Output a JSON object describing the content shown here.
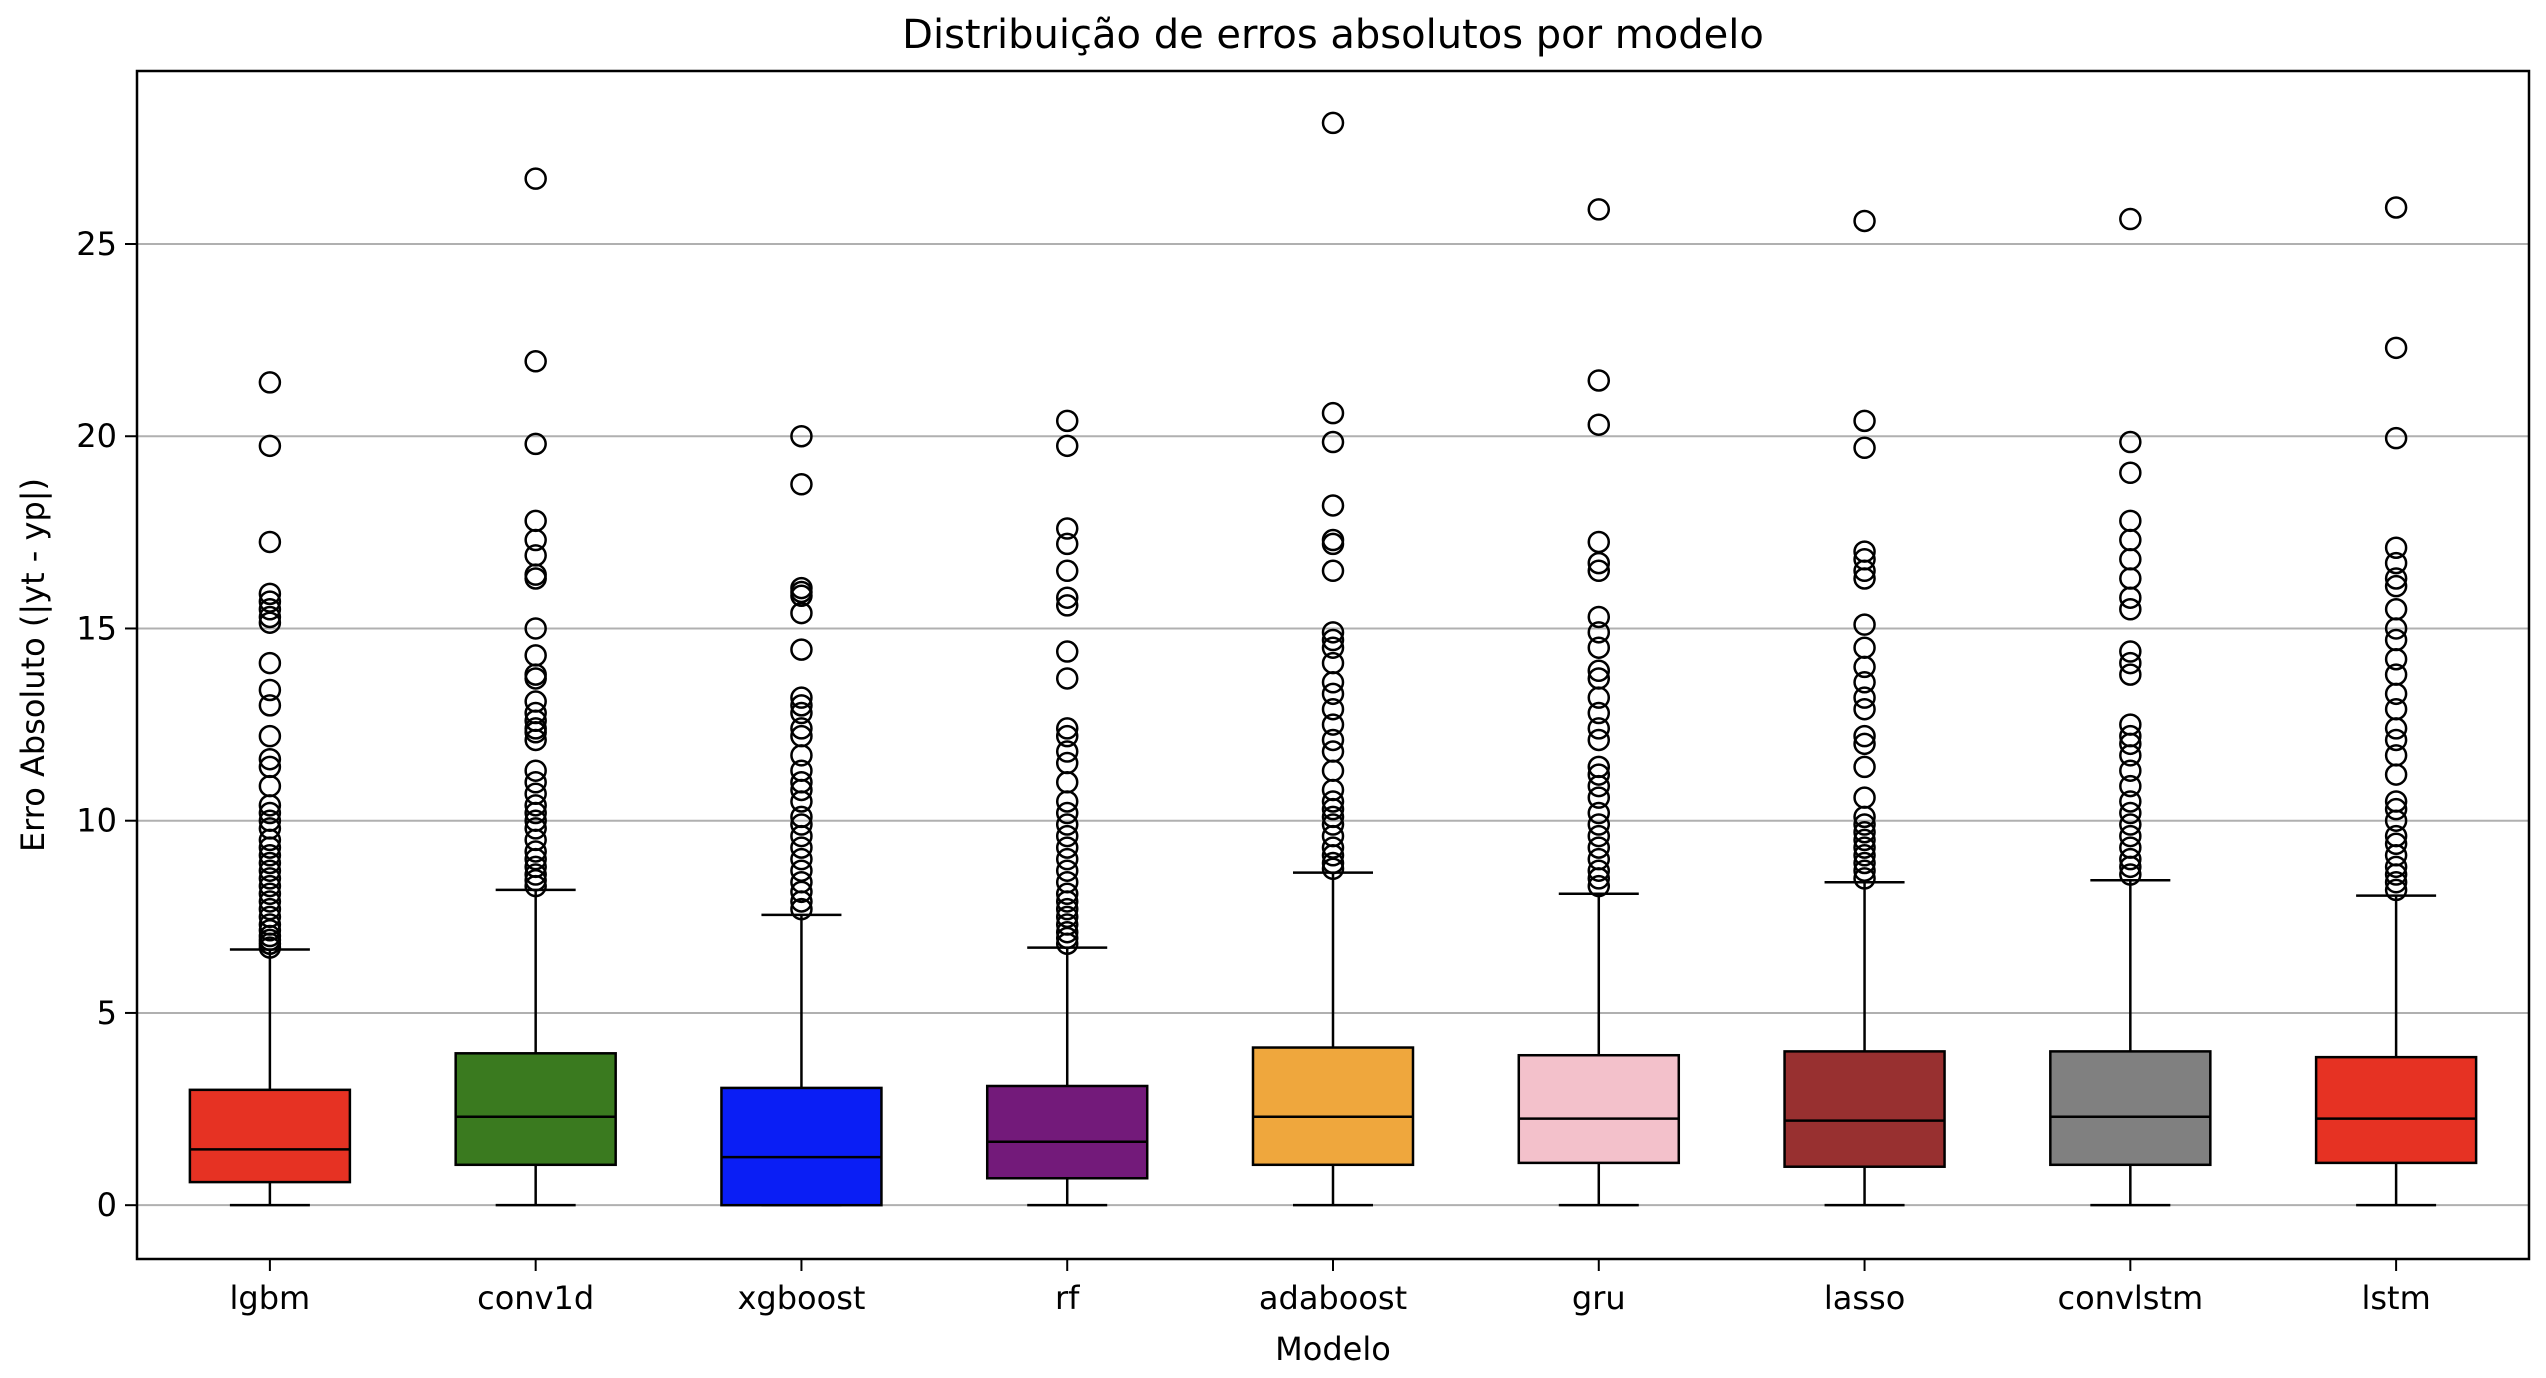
{
  "chart_data": {
    "type": "box",
    "title": "Distribuição de erros absolutos por modelo",
    "xlabel": "Modelo",
    "ylabel": "Erro Absoluto (|yt - yp|)",
    "ylim": [
      -1.4,
      29.5
    ],
    "yticks": [
      0,
      5,
      10,
      15,
      20,
      25
    ],
    "grid": "horizontal",
    "series": [
      {
        "name": "lgbm",
        "color": "#e63223",
        "whislo": 0,
        "q1": 0.6,
        "median": 1.45,
        "q3": 3.0,
        "whishi": 6.65,
        "outliers": [
          21.4,
          19.75,
          17.25,
          15.9,
          15.7,
          15.5,
          15.3,
          15.15,
          14.1,
          13.4,
          13.0,
          12.2,
          11.6,
          11.4,
          10.9,
          10.4,
          10.2,
          10.0,
          9.8,
          9.5,
          9.3,
          9.1,
          8.9,
          8.7,
          8.5,
          8.3,
          8.1,
          7.9,
          7.7,
          7.5,
          7.3,
          7.15,
          7.0,
          6.9,
          6.8,
          6.7
        ]
      },
      {
        "name": "conv1d",
        "color": "#3a7a1f",
        "whislo": 0,
        "q1": 1.05,
        "median": 2.3,
        "q3": 3.95,
        "whishi": 8.2,
        "outliers": [
          26.7,
          21.95,
          19.8,
          17.8,
          17.3,
          16.9,
          16.4,
          16.3,
          15.0,
          14.3,
          13.8,
          13.7,
          13.1,
          12.8,
          12.6,
          12.4,
          12.3,
          12.1,
          11.3,
          11.0,
          10.7,
          10.4,
          10.2,
          10.0,
          9.8,
          9.5,
          9.2,
          9.0,
          8.8,
          8.6,
          8.45,
          8.3
        ]
      },
      {
        "name": "xgboost",
        "color": "#0a1ef5",
        "whislo": 0,
        "q1": 0.0,
        "median": 1.25,
        "q3": 3.05,
        "whishi": 7.55,
        "outliers": [
          20.0,
          18.75,
          16.05,
          15.95,
          15.85,
          15.4,
          14.45,
          13.2,
          13.0,
          12.8,
          12.4,
          12.2,
          11.7,
          11.3,
          11.0,
          10.8,
          10.5,
          10.1,
          9.9,
          9.6,
          9.3,
          9.0,
          8.7,
          8.4,
          8.15,
          7.9,
          7.7
        ]
      },
      {
        "name": "rf",
        "color": "#731a7a",
        "whislo": 0,
        "q1": 0.7,
        "median": 1.65,
        "q3": 3.1,
        "whishi": 6.7,
        "outliers": [
          20.4,
          19.75,
          17.6,
          17.2,
          16.5,
          15.8,
          15.6,
          14.4,
          13.7,
          12.4,
          12.2,
          11.8,
          11.5,
          11.0,
          10.5,
          10.2,
          9.9,
          9.6,
          9.3,
          9.0,
          8.7,
          8.4,
          8.1,
          7.9,
          7.7,
          7.5,
          7.3,
          7.1,
          6.95,
          6.8
        ]
      },
      {
        "name": "adaboost",
        "color": "#efa73d",
        "whislo": 0,
        "q1": 1.05,
        "median": 2.3,
        "q3": 4.1,
        "whishi": 8.65,
        "outliers": [
          28.15,
          20.6,
          19.85,
          18.2,
          17.3,
          17.2,
          16.5,
          14.9,
          14.7,
          14.5,
          14.1,
          13.6,
          13.3,
          12.9,
          12.5,
          12.1,
          11.8,
          11.3,
          10.8,
          10.5,
          10.3,
          10.1,
          9.9,
          9.6,
          9.3,
          9.1,
          8.9,
          8.75
        ]
      },
      {
        "name": "gru",
        "color": "#f3c1cb",
        "whislo": 0,
        "q1": 1.1,
        "median": 2.25,
        "q3": 3.9,
        "whishi": 8.1,
        "outliers": [
          25.9,
          21.45,
          20.3,
          17.25,
          16.7,
          16.5,
          15.3,
          14.9,
          14.5,
          13.9,
          13.7,
          13.2,
          12.8,
          12.4,
          12.1,
          11.4,
          11.2,
          10.9,
          10.6,
          10.2,
          9.9,
          9.6,
          9.3,
          9.0,
          8.7,
          8.5,
          8.3
        ]
      },
      {
        "name": "lasso",
        "color": "#983030",
        "whislo": 0,
        "q1": 1.0,
        "median": 2.2,
        "q3": 4.0,
        "whishi": 8.4,
        "outliers": [
          25.6,
          20.4,
          19.7,
          17.0,
          16.8,
          16.5,
          16.3,
          15.1,
          14.5,
          14.0,
          13.6,
          13.2,
          12.9,
          12.2,
          12.0,
          11.4,
          10.6,
          10.1,
          9.9,
          9.7,
          9.5,
          9.3,
          9.1,
          8.9,
          8.7,
          8.5
        ]
      },
      {
        "name": "convlstm",
        "color": "#808080",
        "whislo": 0,
        "q1": 1.05,
        "median": 2.3,
        "q3": 4.0,
        "whishi": 8.45,
        "outliers": [
          25.65,
          19.85,
          19.05,
          17.8,
          17.3,
          16.8,
          16.3,
          15.8,
          15.5,
          14.4,
          14.1,
          13.8,
          12.5,
          12.2,
          12.0,
          11.7,
          11.3,
          10.9,
          10.5,
          10.2,
          9.9,
          9.6,
          9.3,
          9.0,
          8.8,
          8.6
        ]
      },
      {
        "name": "lstm",
        "color": "#e63223",
        "whislo": 0,
        "q1": 1.1,
        "median": 2.25,
        "q3": 3.85,
        "whishi": 8.05,
        "outliers": [
          25.95,
          22.3,
          19.95,
          17.1,
          16.7,
          16.3,
          16.1,
          15.5,
          15.0,
          14.7,
          14.2,
          13.8,
          13.3,
          12.9,
          12.4,
          12.1,
          11.7,
          11.2,
          10.5,
          10.3,
          10.0,
          9.6,
          9.4,
          9.1,
          8.8,
          8.6,
          8.4,
          8.2
        ]
      }
    ]
  }
}
